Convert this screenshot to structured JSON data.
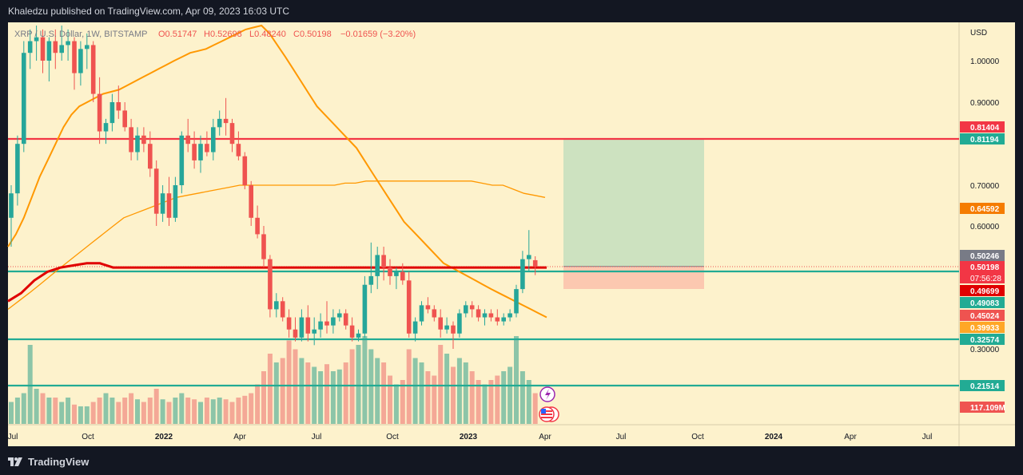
{
  "header": {
    "published": "Khaledzu published on TradingView.com, Apr 09, 2023 16:03 UTC"
  },
  "footer": {
    "brand": "TradingView"
  },
  "legend": {
    "symbol": "XRP / U.S. Dollar, 1W, BITSTAMP",
    "o": "O0.51747",
    "h": "H0.52698",
    "l": "L0.48240",
    "c": "C0.50198",
    "chg": "−0.01659 (−3.20%)"
  },
  "axis": {
    "currency": "USD"
  },
  "colors": {
    "bg": "#fdf2cc",
    "up": "#26a69a",
    "down": "#ef5350",
    "red_line": "#f23645",
    "teal_line": "#22ab94",
    "orange": "#ff9800"
  },
  "chart_data": {
    "type": "candlestick",
    "timeframe": "1W",
    "x_ticks": [
      "Jul",
      "Oct",
      "2022",
      "Apr",
      "Jul",
      "Oct",
      "2023",
      "Apr",
      "Jul",
      "Oct",
      "2024",
      "Apr",
      "Jul"
    ],
    "y_ticks": [
      "1.00000",
      "0.90000",
      "0.70000",
      "0.60000",
      "0.30000"
    ],
    "ylim": [
      0.19,
      1.09
    ],
    "last_bar": {
      "open": 0.51747,
      "high": 0.52698,
      "low": 0.4824,
      "close": 0.50198,
      "change": -0.01659,
      "change_pct": -3.2,
      "countdown": "07:56:28"
    },
    "horizontal_levels": [
      {
        "price": 0.81194,
        "color": "#f23645"
      },
      {
        "price": 0.49083,
        "color": "#22ab94"
      },
      {
        "price": 0.32574,
        "color": "#22ab94"
      },
      {
        "price": 0.21514,
        "color": "#22ab94"
      }
    ],
    "price_labels": [
      {
        "text": "0.81404",
        "color": "#f23645"
      },
      {
        "text": "0.81194",
        "color": "#22ab94"
      },
      {
        "text": "0.64592",
        "color": "#f57c00"
      },
      {
        "text": "0.50246",
        "color": "#787b86"
      },
      {
        "text": "0.50198",
        "color": "#f23645"
      },
      {
        "text": "0.49699",
        "color": "#e00000"
      },
      {
        "text": "0.49083",
        "color": "#22ab94"
      },
      {
        "text": "0.45024",
        "color": "#ef5350"
      },
      {
        "text": "0.39933",
        "color": "#ffa726"
      },
      {
        "text": "0.32574",
        "color": "#22ab94"
      },
      {
        "text": "0.21514",
        "color": "#22ab94"
      },
      {
        "text": "117.109M",
        "color": "#ef5350"
      }
    ],
    "long_position": {
      "entry": 0.50246,
      "target": 0.81194,
      "stop": 0.45024,
      "start": "Apr 2023",
      "end": "Oct 2023"
    },
    "candles": [
      [
        0.62,
        0.7,
        0.55,
        0.68
      ],
      [
        0.68,
        0.82,
        0.65,
        0.8
      ],
      [
        0.8,
        1.05,
        0.78,
        1.02
      ],
      [
        1.02,
        1.08,
        0.98,
        1.05
      ],
      [
        1.05,
        1.09,
        1.0,
        1.06
      ],
      [
        1.06,
        1.08,
        0.97,
        1.0
      ],
      [
        1.0,
        1.06,
        0.95,
        1.05
      ],
      [
        1.05,
        1.08,
        0.98,
        1.02
      ],
      [
        1.02,
        1.09,
        1.0,
        1.04
      ],
      [
        1.04,
        1.08,
        1.0,
        1.05
      ],
      [
        1.05,
        1.06,
        0.93,
        0.97
      ],
      [
        0.97,
        1.05,
        0.94,
        1.03
      ],
      [
        1.03,
        1.07,
        0.98,
        1.04
      ],
      [
        1.04,
        1.05,
        0.9,
        0.92
      ],
      [
        0.92,
        0.96,
        0.8,
        0.83
      ],
      [
        0.83,
        0.86,
        0.8,
        0.85
      ],
      [
        0.85,
        0.92,
        0.83,
        0.9
      ],
      [
        0.9,
        0.94,
        0.86,
        0.88
      ],
      [
        0.88,
        0.9,
        0.83,
        0.84
      ],
      [
        0.84,
        0.86,
        0.76,
        0.78
      ],
      [
        0.78,
        0.84,
        0.76,
        0.82
      ],
      [
        0.82,
        0.84,
        0.78,
        0.8
      ],
      [
        0.8,
        0.83,
        0.72,
        0.74
      ],
      [
        0.74,
        0.76,
        0.6,
        0.63
      ],
      [
        0.63,
        0.7,
        0.61,
        0.68
      ],
      [
        0.68,
        0.72,
        0.6,
        0.62
      ],
      [
        0.62,
        0.72,
        0.61,
        0.7
      ],
      [
        0.7,
        0.83,
        0.68,
        0.82
      ],
      [
        0.82,
        0.86,
        0.78,
        0.8
      ],
      [
        0.8,
        0.83,
        0.74,
        0.76
      ],
      [
        0.76,
        0.82,
        0.73,
        0.8
      ],
      [
        0.8,
        0.83,
        0.77,
        0.78
      ],
      [
        0.78,
        0.86,
        0.76,
        0.84
      ],
      [
        0.84,
        0.88,
        0.82,
        0.86
      ],
      [
        0.86,
        0.91,
        0.82,
        0.85
      ],
      [
        0.85,
        0.86,
        0.78,
        0.8
      ],
      [
        0.8,
        0.83,
        0.76,
        0.77
      ],
      [
        0.77,
        0.78,
        0.69,
        0.7
      ],
      [
        0.7,
        0.71,
        0.6,
        0.62
      ],
      [
        0.62,
        0.65,
        0.57,
        0.58
      ],
      [
        0.58,
        0.6,
        0.5,
        0.52
      ],
      [
        0.52,
        0.53,
        0.38,
        0.4
      ],
      [
        0.4,
        0.44,
        0.38,
        0.42
      ],
      [
        0.42,
        0.43,
        0.37,
        0.38
      ],
      [
        0.38,
        0.4,
        0.33,
        0.35
      ],
      [
        0.35,
        0.38,
        0.32,
        0.33
      ],
      [
        0.33,
        0.4,
        0.32,
        0.38
      ],
      [
        0.38,
        0.41,
        0.32,
        0.34
      ],
      [
        0.34,
        0.38,
        0.31,
        0.35
      ],
      [
        0.35,
        0.39,
        0.33,
        0.37
      ],
      [
        0.37,
        0.42,
        0.34,
        0.36
      ],
      [
        0.36,
        0.4,
        0.34,
        0.38
      ],
      [
        0.38,
        0.4,
        0.37,
        0.39
      ],
      [
        0.39,
        0.4,
        0.35,
        0.36
      ],
      [
        0.36,
        0.38,
        0.32,
        0.33
      ],
      [
        0.33,
        0.35,
        0.32,
        0.34
      ],
      [
        0.34,
        0.48,
        0.33,
        0.46
      ],
      [
        0.46,
        0.56,
        0.44,
        0.48
      ],
      [
        0.48,
        0.55,
        0.45,
        0.53
      ],
      [
        0.53,
        0.55,
        0.47,
        0.5
      ],
      [
        0.5,
        0.52,
        0.46,
        0.48
      ],
      [
        0.48,
        0.5,
        0.45,
        0.49
      ],
      [
        0.49,
        0.51,
        0.46,
        0.47
      ],
      [
        0.47,
        0.49,
        0.33,
        0.34
      ],
      [
        0.34,
        0.38,
        0.32,
        0.37
      ],
      [
        0.37,
        0.42,
        0.36,
        0.41
      ],
      [
        0.41,
        0.43,
        0.39,
        0.4
      ],
      [
        0.4,
        0.41,
        0.37,
        0.38
      ],
      [
        0.38,
        0.4,
        0.33,
        0.35
      ],
      [
        0.35,
        0.38,
        0.34,
        0.36
      ],
      [
        0.36,
        0.37,
        0.3,
        0.34
      ],
      [
        0.34,
        0.4,
        0.33,
        0.39
      ],
      [
        0.39,
        0.42,
        0.38,
        0.41
      ],
      [
        0.41,
        0.42,
        0.38,
        0.4
      ],
      [
        0.4,
        0.41,
        0.37,
        0.38
      ],
      [
        0.38,
        0.4,
        0.36,
        0.39
      ],
      [
        0.39,
        0.4,
        0.37,
        0.38
      ],
      [
        0.38,
        0.4,
        0.36,
        0.37
      ],
      [
        0.37,
        0.39,
        0.36,
        0.38
      ],
      [
        0.38,
        0.4,
        0.37,
        0.39
      ],
      [
        0.39,
        0.46,
        0.38,
        0.45
      ],
      [
        0.45,
        0.54,
        0.44,
        0.52
      ],
      [
        0.52,
        0.59,
        0.49,
        0.53
      ],
      [
        0.51747,
        0.52698,
        0.4824,
        0.50198
      ]
    ],
    "volume_rel": [
      0.25,
      0.3,
      0.35,
      0.9,
      0.4,
      0.35,
      0.3,
      0.3,
      0.25,
      0.3,
      0.22,
      0.2,
      0.2,
      0.25,
      0.3,
      0.35,
      0.3,
      0.25,
      0.3,
      0.35,
      0.28,
      0.25,
      0.3,
      0.4,
      0.28,
      0.25,
      0.3,
      0.35,
      0.3,
      0.28,
      0.25,
      0.3,
      0.28,
      0.3,
      0.28,
      0.25,
      0.3,
      0.32,
      0.35,
      0.45,
      0.6,
      0.8,
      0.7,
      0.75,
      0.95,
      0.85,
      0.75,
      0.7,
      0.65,
      0.6,
      0.68,
      0.6,
      0.62,
      0.7,
      0.85,
      0.9,
      1.0,
      0.85,
      0.75,
      0.7,
      0.55,
      0.45,
      0.5,
      0.85,
      0.75,
      0.7,
      0.6,
      0.55,
      0.9,
      0.8,
      0.65,
      0.75,
      0.7,
      0.6,
      0.5,
      0.45,
      0.5,
      0.55,
      0.6,
      0.65,
      1.0,
      0.6,
      0.5,
      0.35
    ],
    "ma_fast": [
      0.55,
      0.58,
      0.62,
      0.67,
      0.72,
      0.76,
      0.8,
      0.84,
      0.87,
      0.89,
      0.9,
      0.91,
      0.92,
      0.925,
      0.93,
      0.94,
      0.95,
      0.96,
      0.97,
      0.98,
      0.99,
      1.0,
      1.01,
      1.02,
      1.025,
      1.03,
      1.04,
      1.05,
      1.06,
      1.07,
      1.08,
      1.085,
      1.09,
      1.07,
      1.04,
      1.01,
      0.98,
      0.95,
      0.92,
      0.89,
      0.87,
      0.85,
      0.83,
      0.81,
      0.79,
      0.76,
      0.73,
      0.7,
      0.67,
      0.64,
      0.61,
      0.59,
      0.57,
      0.55,
      0.53,
      0.51,
      0.5,
      0.49,
      0.48,
      0.47,
      0.46,
      0.45,
      0.44,
      0.43,
      0.42,
      0.41,
      0.4,
      0.39,
      0.38
    ],
    "ma_slow": [
      0.4,
      0.42,
      0.44,
      0.46,
      0.48,
      0.5,
      0.52,
      0.54,
      0.56,
      0.58,
      0.6,
      0.62,
      0.63,
      0.64,
      0.65,
      0.66,
      0.67,
      0.675,
      0.68,
      0.685,
      0.69,
      0.695,
      0.7,
      0.7,
      0.7,
      0.7,
      0.7,
      0.7,
      0.7,
      0.7,
      0.7,
      0.7,
      0.705,
      0.705,
      0.71,
      0.71,
      0.71,
      0.71,
      0.71,
      0.71,
      0.71,
      0.71,
      0.71,
      0.71,
      0.71,
      0.705,
      0.7,
      0.7,
      0.69,
      0.68,
      0.675,
      0.67
    ],
    "ma_red": [
      0.42,
      0.44,
      0.47,
      0.49,
      0.5,
      0.505,
      0.51,
      0.51,
      0.5,
      0.5,
      0.5,
      0.5,
      0.5,
      0.5,
      0.5,
      0.5,
      0.5,
      0.5,
      0.5,
      0.5,
      0.5,
      0.5,
      0.5,
      0.5,
      0.5,
      0.5,
      0.5,
      0.5,
      0.5,
      0.5,
      0.5,
      0.5,
      0.5,
      0.5,
      0.5,
      0.5,
      0.5,
      0.5,
      0.5,
      0.5,
      0.5,
      0.5
    ]
  }
}
